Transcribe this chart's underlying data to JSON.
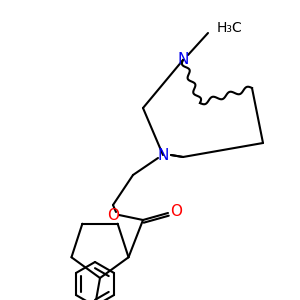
{
  "background_color": "#ffffff",
  "figure_size": [
    3.0,
    3.0
  ],
  "dpi": 100,
  "atom_colors": {
    "N": "#0000ee",
    "O": "#ff0000",
    "C": "#000000"
  },
  "lw": 1.5
}
